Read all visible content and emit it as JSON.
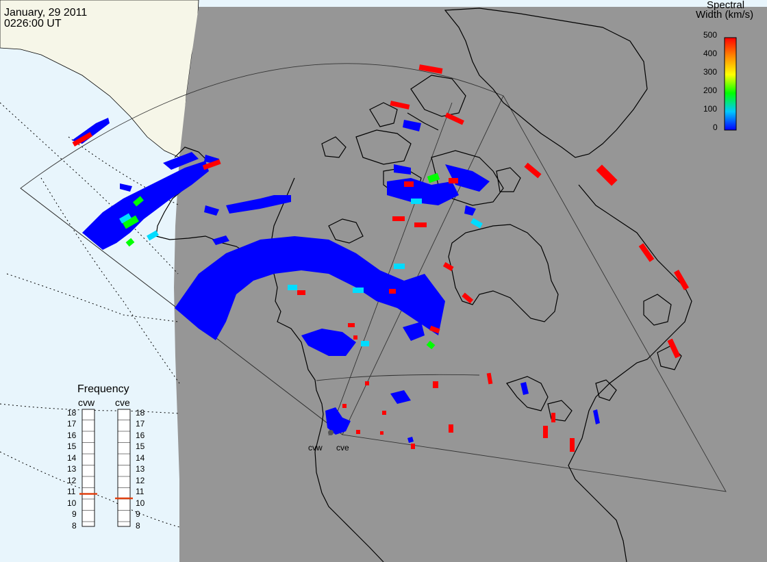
{
  "header": {
    "date": "January, 29 2011",
    "time": "0226:00 UT"
  },
  "colorbar": {
    "title_line1": "Spectral",
    "title_line2": "Width (km/s)",
    "ticks": [
      "500",
      "400",
      "300",
      "200",
      "100",
      "0"
    ],
    "range": [
      0,
      500
    ],
    "colors": [
      "#0000ff",
      "#00c8ff",
      "#00ff00",
      "#ffff00",
      "#ff8800",
      "#ff0000"
    ]
  },
  "frequency_panel": {
    "title": "Frequency",
    "radars": [
      {
        "name": "cvw",
        "selected_mhz": 11
      },
      {
        "name": "cve",
        "selected_mhz": 10.5
      }
    ],
    "ticks": [
      "18",
      "17",
      "16",
      "15",
      "14",
      "13",
      "12",
      "11",
      "10",
      "9",
      "8"
    ],
    "marker_color": "#e04010"
  },
  "radars": [
    {
      "name": "cvw"
    },
    {
      "name": "cve"
    }
  ],
  "map": {
    "sea_color": "#e8f5fc",
    "land_color": "#f6f6e8",
    "night_color": "#969696",
    "coast_color": "#000000"
  }
}
